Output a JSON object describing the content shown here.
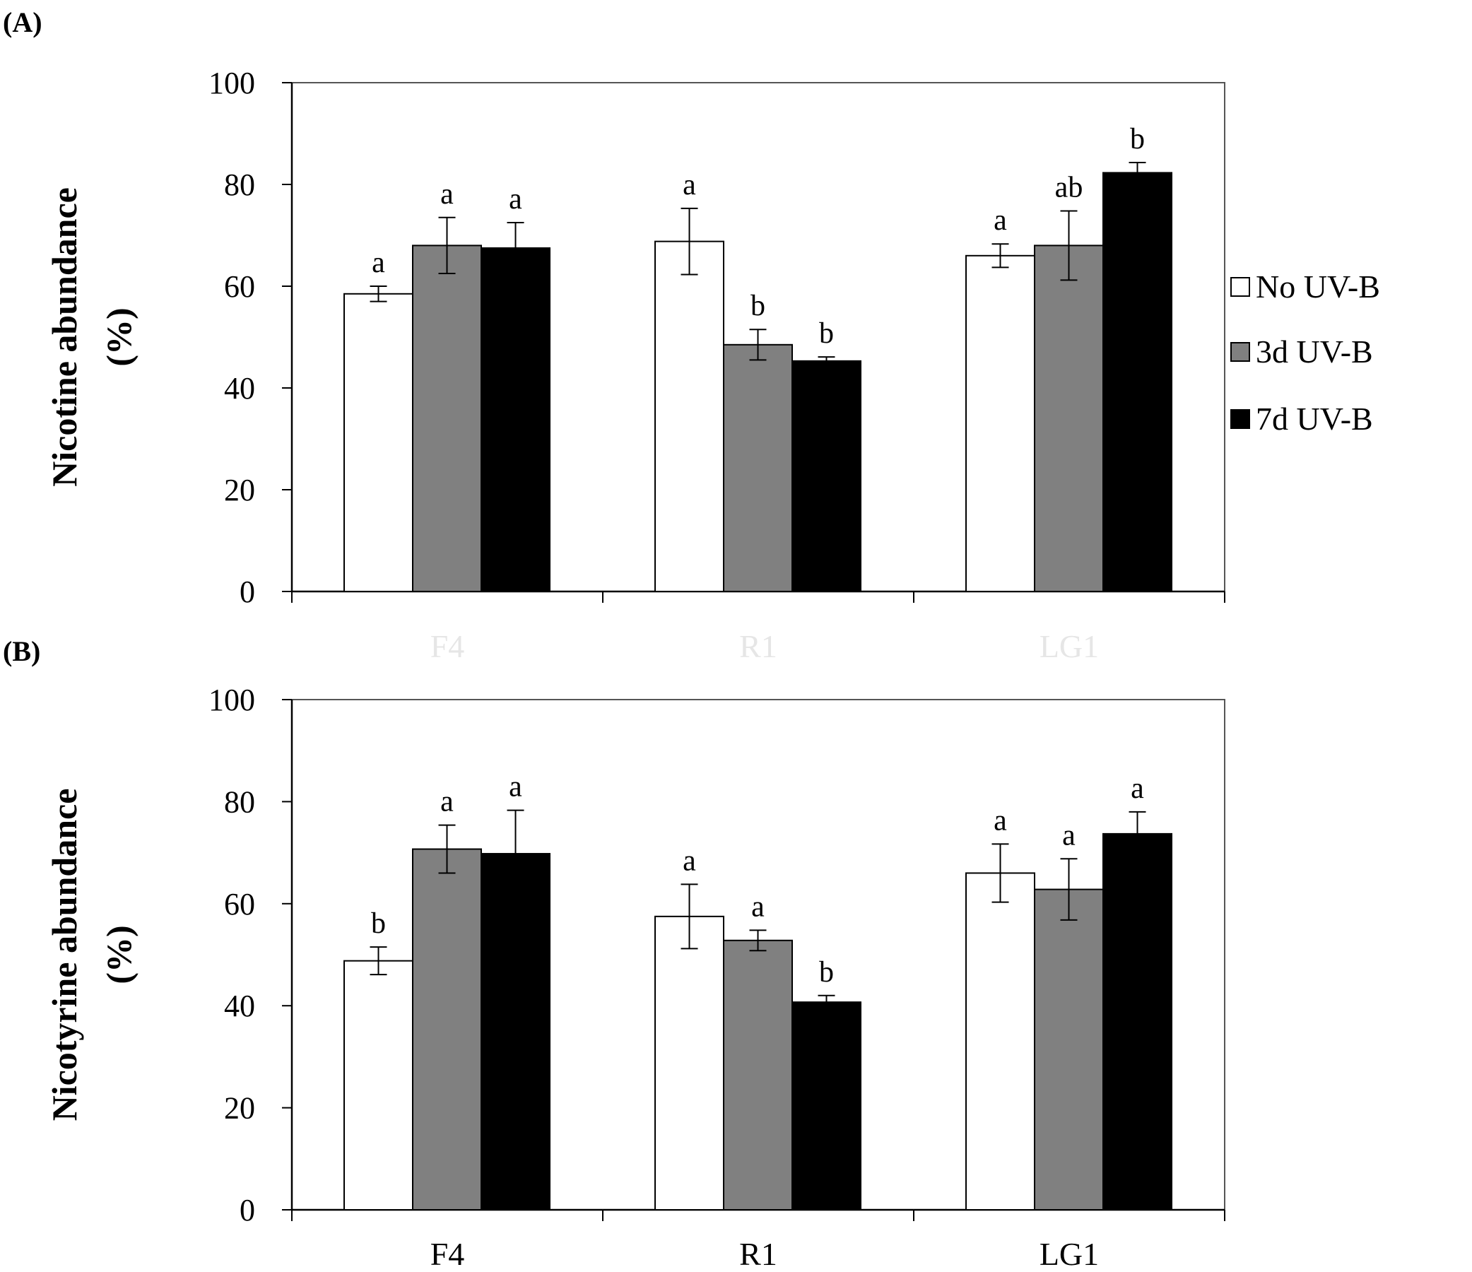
{
  "chart_data": [
    {
      "type": "bar",
      "panel_label": "(A)",
      "title": "",
      "xlabel": "",
      "ylabel": "Nicotine abundance",
      "ylabel_unit": "(%)",
      "ylim": [
        0,
        100
      ],
      "yticks": [
        "0",
        "20",
        "40",
        "60",
        "80",
        "100"
      ],
      "categories": [
        "F4",
        "R1",
        "LG1"
      ],
      "categories_faded": true,
      "series": [
        {
          "name": "No UV-B",
          "color": "#ffffff",
          "values": [
            58.5,
            68.8,
            66.0
          ],
          "errors": [
            1.5,
            6.5,
            2.3
          ],
          "letters": [
            "a",
            "a",
            "a"
          ]
        },
        {
          "name": "3d UV-B",
          "color": "#808080",
          "values": [
            68.0,
            48.5,
            68.0
          ],
          "errors": [
            5.5,
            3.0,
            6.8
          ],
          "letters": [
            "a",
            "b",
            "ab"
          ]
        },
        {
          "name": "7d UV-B",
          "color": "#000000",
          "values": [
            67.5,
            45.3,
            82.3
          ],
          "errors": [
            5.0,
            0.8,
            2.0
          ],
          "letters": [
            "a",
            "b",
            "b"
          ]
        }
      ]
    },
    {
      "type": "bar",
      "panel_label": "(B)",
      "title": "",
      "xlabel": "",
      "ylabel": "Nicotyrine abundance",
      "ylabel_unit": "(%)",
      "ylim": [
        0,
        100
      ],
      "yticks": [
        "0",
        "20",
        "40",
        "60",
        "80",
        "100"
      ],
      "categories": [
        "F4",
        "R1",
        "LG1"
      ],
      "categories_faded": false,
      "series": [
        {
          "name": "No UV-B",
          "color": "#ffffff",
          "values": [
            48.8,
            57.5,
            66.0
          ],
          "errors": [
            2.7,
            6.3,
            5.7
          ],
          "letters": [
            "b",
            "a",
            "a"
          ]
        },
        {
          "name": "3d UV-B",
          "color": "#808080",
          "values": [
            70.7,
            52.8,
            62.8
          ],
          "errors": [
            4.7,
            2.0,
            6.0
          ],
          "letters": [
            "a",
            "a",
            "a"
          ]
        },
        {
          "name": "7d UV-B",
          "color": "#000000",
          "values": [
            69.8,
            40.7,
            73.7
          ],
          "errors": [
            8.5,
            1.3,
            4.3
          ],
          "letters": [
            "a",
            "b",
            "a"
          ]
        }
      ]
    }
  ],
  "legend": {
    "items": [
      {
        "label": "No UV-B",
        "color": "#ffffff"
      },
      {
        "label": "3d UV-B",
        "color": "#808080"
      },
      {
        "label": "7d UV-B",
        "color": "#000000"
      }
    ]
  }
}
